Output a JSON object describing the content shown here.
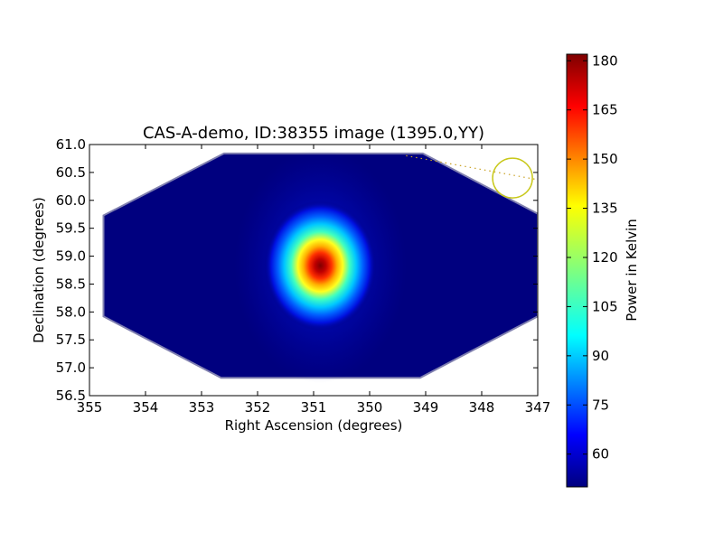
{
  "chart_data": {
    "type": "heatmap",
    "title": "CAS-A-demo, ID:38355 image (1395.0,YY)",
    "xlabel": "Right Ascension (degrees)",
    "ylabel": "Declination (degrees)",
    "xlim": [
      355,
      347
    ],
    "ylim": [
      56.5,
      61.0
    ],
    "x_ticks": [
      "355",
      "354",
      "353",
      "352",
      "351",
      "350",
      "349",
      "348",
      "347"
    ],
    "y_ticks": [
      "56.5",
      "57.0",
      "57.5",
      "58.0",
      "58.5",
      "59.0",
      "59.5",
      "60.0",
      "60.5",
      "61.0"
    ],
    "footprint_polygon": [
      [
        354.75,
        59.73
      ],
      [
        352.6,
        60.84
      ],
      [
        349.05,
        60.84
      ],
      [
        347.0,
        59.76
      ],
      [
        347.0,
        57.92
      ],
      [
        349.1,
        56.82
      ],
      [
        352.65,
        56.82
      ],
      [
        354.75,
        57.92
      ]
    ],
    "peak": {
      "ra": 350.88,
      "dec": 58.83,
      "value": 182
    },
    "source_circle": {
      "ra": 347.45,
      "dec": 60.4
    },
    "dotted_track": [
      [
        349.35,
        60.8
      ],
      [
        347.0,
        60.37
      ]
    ],
    "colorbar": {
      "label": "Power in Kelvin",
      "min": 50,
      "max": 182,
      "ticks": [
        "60",
        "75",
        "90",
        "105",
        "120",
        "135",
        "150",
        "165",
        "180"
      ],
      "colormap": "jet"
    },
    "colors": {
      "circle": "#c8c81a",
      "track": "#c8a020",
      "background": "#00007f"
    }
  }
}
